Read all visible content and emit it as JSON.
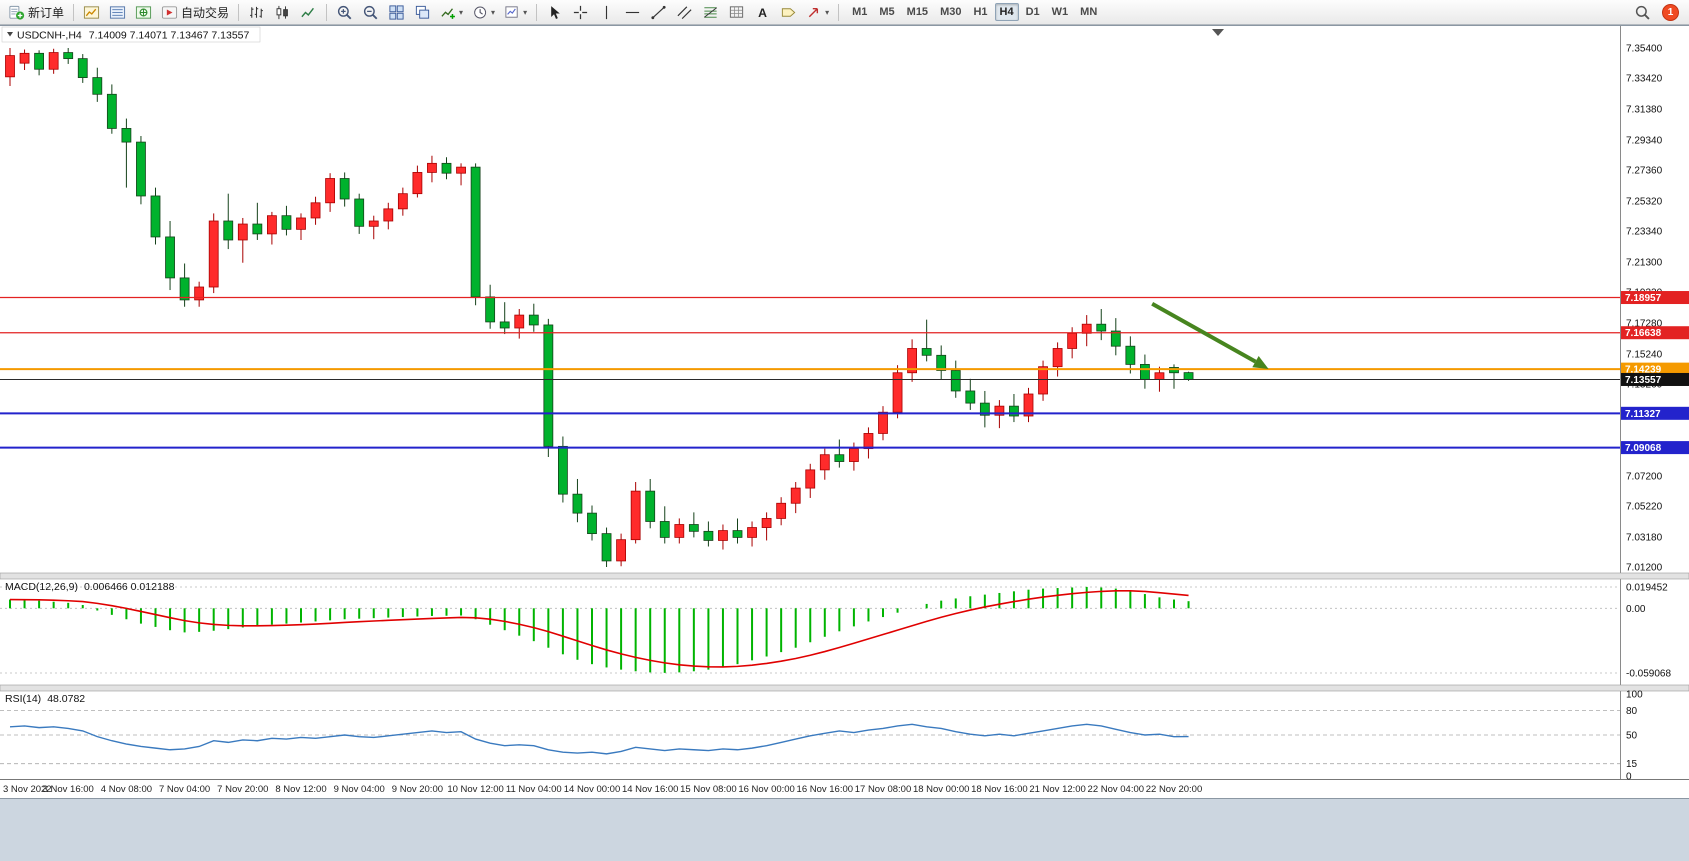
{
  "window": {
    "badge_count": "1"
  },
  "toolbar": {
    "items": [
      {
        "type": "labeled-button",
        "name": "new-order-button",
        "icon": "new-order-icon",
        "label": "新订单"
      },
      {
        "type": "sep"
      },
      {
        "type": "icon-button",
        "name": "market-watch-button",
        "icon": "market-watch-icon"
      },
      {
        "type": "icon-button",
        "name": "data-window-button",
        "icon": "data-window-icon"
      },
      {
        "type": "icon-button",
        "name": "navigator-button",
        "icon": "navigator-icon"
      },
      {
        "type": "labeled-button",
        "name": "auto-trading-button",
        "icon": "auto-trading-icon",
        "label": "自动交易"
      },
      {
        "type": "sep"
      },
      {
        "type": "icon-button",
        "name": "bar-chart-button",
        "icon": "bar-chart-icon"
      },
      {
        "type": "icon-button",
        "name": "candlestick-chart-button",
        "icon": "candlestick-icon"
      },
      {
        "type": "icon-button",
        "name": "line-chart-button",
        "icon": "line-chart-icon"
      },
      {
        "type": "sep"
      },
      {
        "type": "icon-button",
        "name": "zoom-in-button",
        "icon": "zoom-in-icon"
      },
      {
        "type": "icon-button",
        "name": "zoom-out-button",
        "icon": "zoom-out-icon"
      },
      {
        "type": "icon-button",
        "name": "tile-windows-button",
        "icon": "tile-windows-icon"
      },
      {
        "type": "icon-button",
        "name": "cascade-windows-button",
        "icon": "cascade-windows-icon"
      },
      {
        "type": "icon-dropdown",
        "name": "indicators-button",
        "icon": "indicators-icon"
      },
      {
        "type": "icon-dropdown",
        "name": "periods-button",
        "icon": "periods-icon"
      },
      {
        "type": "icon-dropdown",
        "name": "templates-button",
        "icon": "templates-icon"
      },
      {
        "type": "sep"
      },
      {
        "type": "icon-button",
        "name": "cursor-button",
        "icon": "cursor-icon"
      },
      {
        "type": "icon-button",
        "name": "crosshair-button",
        "icon": "crosshair-icon"
      },
      {
        "type": "icon-button",
        "name": "vertical-line-button",
        "icon": "vline-icon"
      },
      {
        "type": "icon-button",
        "name": "horizontal-line-button",
        "icon": "hline-icon"
      },
      {
        "type": "icon-button",
        "name": "trendline-button",
        "icon": "trendline-icon"
      },
      {
        "type": "icon-button",
        "name": "channel-button",
        "icon": "channel-icon"
      },
      {
        "type": "icon-button",
        "name": "fibonacci-button",
        "icon": "fibonacci-icon"
      },
      {
        "type": "icon-button",
        "name": "shapes-button",
        "icon": "shapes-icon"
      },
      {
        "type": "icon-button",
        "name": "text-button",
        "icon": "text-icon"
      },
      {
        "type": "icon-button",
        "name": "text-label-button",
        "icon": "label-icon"
      },
      {
        "type": "icon-dropdown",
        "name": "arrows-button",
        "icon": "arrows-icon"
      },
      {
        "type": "sep"
      }
    ],
    "timeframes": [
      {
        "label": "M1",
        "active": false
      },
      {
        "label": "M5",
        "active": false
      },
      {
        "label": "M15",
        "active": false
      },
      {
        "label": "M30",
        "active": false
      },
      {
        "label": "H1",
        "active": false
      },
      {
        "label": "H4",
        "active": true
      },
      {
        "label": "D1",
        "active": false
      },
      {
        "label": "W1",
        "active": false
      },
      {
        "label": "MN",
        "active": false
      }
    ],
    "right_items": [
      {
        "type": "icon-button",
        "name": "search-button",
        "icon": "search-icon"
      },
      {
        "type": "badge",
        "name": "notification-badge"
      }
    ]
  },
  "chart": {
    "symbol_title": "USDCNH-,H4",
    "ohlc_text": "7.14009 7.14071 7.13467 7.13557",
    "colors": {
      "up_fill": "#ff2b2b",
      "up_stroke": "#a80000",
      "down_fill": "#00b22d",
      "down_stroke": "#15421a",
      "red_line": "#e32222",
      "orange_line": "#f59a00",
      "blue_line": "#2323cc",
      "current_line": "#2b2b2b",
      "macd_hist": "#00b400",
      "macd_signal": "#e00000",
      "rsi_line": "#3a7abf"
    },
    "price_axis_ticks": [
      "7.35400",
      "7.33420",
      "7.31380",
      "7.29340",
      "7.27360",
      "7.25320",
      "7.23340",
      "7.21300",
      "7.19320",
      "7.17280",
      "7.15240",
      "7.13260",
      "7.11220",
      "7.09180",
      "7.07200",
      "7.05220",
      "7.03180",
      "7.01200"
    ],
    "hlines": [
      {
        "price": 7.18957,
        "label": "7.18957",
        "kind": "resistance",
        "color_key": "red_line",
        "width": 1.2
      },
      {
        "price": 7.16638,
        "label": "7.16638",
        "kind": "resistance",
        "color_key": "red_line",
        "width": 1.2
      },
      {
        "price": 7.14239,
        "label": "7.14239",
        "kind": "pivot",
        "color_key": "orange_line",
        "width": 2
      },
      {
        "price": 7.11327,
        "label": "7.11327",
        "kind": "support",
        "color_key": "blue_line",
        "width": 2
      },
      {
        "price": 7.09068,
        "label": "7.09068",
        "kind": "support",
        "color_key": "blue_line",
        "width": 2
      }
    ],
    "current_price": {
      "value": 7.13557,
      "label": "7.13557"
    },
    "annotation": {
      "shape": "arrow",
      "direction": "down-right",
      "color": "#47851f",
      "from": {
        "bar": 78.5,
        "price": 7.1855
      },
      "to": {
        "bar": 86.5,
        "price": 7.1425
      }
    }
  },
  "chart_data": {
    "type": "candlestick",
    "title": "USDCNH- H4",
    "price_axis_range": [
      7.354,
      7.012
    ],
    "bars_per_label": 4,
    "x_axis_labels": [
      "3 Nov 2022",
      "3 Nov 16:00",
      "4 Nov 08:00",
      "7 Nov 04:00",
      "7 Nov 20:00",
      "8 Nov 12:00",
      "9 Nov 04:00",
      "9 Nov 20:00",
      "10 Nov 12:00",
      "11 Nov 04:00",
      "14 Nov 00:00",
      "14 Nov 16:00",
      "15 Nov 08:00",
      "16 Nov 00:00",
      "16 Nov 16:00",
      "17 Nov 08:00",
      "18 Nov 00:00",
      "18 Nov 16:00",
      "21 Nov 12:00",
      "22 Nov 04:00",
      "22 Nov 20:00"
    ],
    "candles": [
      [
        7.335,
        7.354,
        7.329,
        7.349
      ],
      [
        7.344,
        7.353,
        7.3395,
        7.3505
      ],
      [
        7.3505,
        7.3525,
        7.336,
        7.34
      ],
      [
        7.34,
        7.3535,
        7.337,
        7.351
      ],
      [
        7.351,
        7.354,
        7.3435,
        7.347
      ],
      [
        7.347,
        7.35,
        7.331,
        7.3345
      ],
      [
        7.3345,
        7.341,
        7.3185,
        7.3235
      ],
      [
        7.3235,
        7.33,
        7.2975,
        7.301
      ],
      [
        7.301,
        7.3075,
        7.262,
        7.292
      ],
      [
        7.292,
        7.296,
        7.251,
        7.2565
      ],
      [
        7.2565,
        7.262,
        7.2245,
        7.2295
      ],
      [
        7.2295,
        7.24,
        7.1945,
        7.2025
      ],
      [
        7.2025,
        7.212,
        7.1835,
        7.188
      ],
      [
        7.188,
        7.2,
        7.1835,
        7.1965
      ],
      [
        7.1965,
        7.245,
        7.1925,
        7.24
      ],
      [
        7.24,
        7.258,
        7.2215,
        7.2275
      ],
      [
        7.2275,
        7.242,
        7.2125,
        7.238
      ],
      [
        7.238,
        7.252,
        7.2275,
        7.2315
      ],
      [
        7.2315,
        7.246,
        7.2245,
        7.2435
      ],
      [
        7.2435,
        7.25,
        7.2305,
        7.2345
      ],
      [
        7.2345,
        7.245,
        7.2275,
        7.242
      ],
      [
        7.242,
        7.256,
        7.2375,
        7.252
      ],
      [
        7.252,
        7.2715,
        7.246,
        7.268
      ],
      [
        7.268,
        7.272,
        7.2495,
        7.2545
      ],
      [
        7.2545,
        7.258,
        7.2315,
        7.2365
      ],
      [
        7.2365,
        7.2435,
        7.228,
        7.24
      ],
      [
        7.24,
        7.252,
        7.2345,
        7.248
      ],
      [
        7.248,
        7.262,
        7.2435,
        7.258
      ],
      [
        7.258,
        7.2765,
        7.2555,
        7.272
      ],
      [
        7.272,
        7.283,
        7.2655,
        7.278
      ],
      [
        7.278,
        7.282,
        7.2675,
        7.2715
      ],
      [
        7.2715,
        7.278,
        7.2635,
        7.2755
      ],
      [
        7.2755,
        7.278,
        7.1845,
        7.19
      ],
      [
        7.19,
        7.198,
        7.169,
        7.1735
      ],
      [
        7.1735,
        7.1865,
        7.1655,
        7.1695
      ],
      [
        7.1695,
        7.182,
        7.1625,
        7.178
      ],
      [
        7.178,
        7.1855,
        7.167,
        7.1715
      ],
      [
        7.1715,
        7.1755,
        7.0845,
        7.0915
      ],
      [
        7.0915,
        7.098,
        7.0545,
        7.06
      ],
      [
        7.06,
        7.07,
        7.0415,
        7.0475
      ],
      [
        7.0475,
        7.0525,
        7.0295,
        7.034
      ],
      [
        7.034,
        7.038,
        7.012,
        7.016
      ],
      [
        7.016,
        7.034,
        7.0125,
        7.03
      ],
      [
        7.03,
        7.068,
        7.0275,
        7.062
      ],
      [
        7.062,
        7.07,
        7.0375,
        7.042
      ],
      [
        7.042,
        7.052,
        7.0275,
        7.0315
      ],
      [
        7.0315,
        7.044,
        7.0275,
        7.04
      ],
      [
        7.04,
        7.048,
        7.0315,
        7.0355
      ],
      [
        7.0355,
        7.042,
        7.0255,
        7.0295
      ],
      [
        7.0295,
        7.04,
        7.0235,
        7.036
      ],
      [
        7.036,
        7.044,
        7.0275,
        7.0315
      ],
      [
        7.0315,
        7.042,
        7.0255,
        7.038
      ],
      [
        7.038,
        7.048,
        7.0295,
        7.044
      ],
      [
        7.044,
        7.058,
        7.0395,
        7.054
      ],
      [
        7.054,
        7.068,
        7.0475,
        7.064
      ],
      [
        7.064,
        7.08,
        7.0575,
        7.076
      ],
      [
        7.076,
        7.09,
        7.0695,
        7.086
      ],
      [
        7.086,
        7.096,
        7.0775,
        7.0815
      ],
      [
        7.0815,
        7.094,
        7.0755,
        7.09
      ],
      [
        7.09,
        7.104,
        7.0835,
        7.1
      ],
      [
        7.1,
        7.118,
        7.0955,
        7.114
      ],
      [
        7.114,
        7.145,
        7.11,
        7.14
      ],
      [
        7.14,
        7.162,
        7.134,
        7.156
      ],
      [
        7.156,
        7.175,
        7.1475,
        7.1515
      ],
      [
        7.1515,
        7.158,
        7.1355,
        7.1415
      ],
      [
        7.1415,
        7.148,
        7.1235,
        7.128
      ],
      [
        7.128,
        7.136,
        7.1155,
        7.12
      ],
      [
        7.12,
        7.128,
        7.104,
        7.112
      ],
      [
        7.112,
        7.122,
        7.1035,
        7.118
      ],
      [
        7.118,
        7.126,
        7.1075,
        7.1115
      ],
      [
        7.1115,
        7.13,
        7.1075,
        7.126
      ],
      [
        7.126,
        7.148,
        7.1215,
        7.144
      ],
      [
        7.144,
        7.16,
        7.1375,
        7.156
      ],
      [
        7.156,
        7.17,
        7.1495,
        7.166
      ],
      [
        7.166,
        7.178,
        7.1575,
        7.172
      ],
      [
        7.172,
        7.182,
        7.1615,
        7.1675
      ],
      [
        7.1675,
        7.176,
        7.1515,
        7.1575
      ],
      [
        7.1575,
        7.164,
        7.1395,
        7.1455
      ],
      [
        7.1455,
        7.152,
        7.1295,
        7.1355
      ],
      [
        7.1355,
        7.144,
        7.1275,
        7.14
      ],
      [
        7.1435,
        7.1455,
        7.1295,
        7.14
      ],
      [
        7.14009,
        7.14071,
        7.13467,
        7.13557
      ]
    ],
    "indicators": [
      {
        "type": "macd",
        "label": "MACD(12,26,9)",
        "values_text": "0.006466 0.012188",
        "macd_current": 0.006466,
        "signal_current": 0.012188,
        "axis_ticks": [
          {
            "value": 0.019452,
            "label": "0.019452"
          },
          {
            "value": 0,
            "label": "0.00"
          },
          {
            "value": -0.059068,
            "label": "-0.059068"
          }
        ],
        "histogram": [
          0.008,
          0.0075,
          0.007,
          0.006,
          0.005,
          0.003,
          -0.002,
          -0.006,
          -0.01,
          -0.014,
          -0.017,
          -0.02,
          -0.022,
          -0.0215,
          -0.0205,
          -0.019,
          -0.0175,
          -0.016,
          -0.015,
          -0.014,
          -0.013,
          -0.012,
          -0.011,
          -0.01,
          -0.0095,
          -0.009,
          -0.0085,
          -0.008,
          -0.0075,
          -0.007,
          -0.0068,
          -0.0066,
          -0.01,
          -0.015,
          -0.02,
          -0.025,
          -0.03,
          -0.036,
          -0.042,
          -0.047,
          -0.051,
          -0.054,
          -0.056,
          -0.0575,
          -0.0585,
          -0.059,
          -0.0585,
          -0.0575,
          -0.056,
          -0.054,
          -0.051,
          -0.0475,
          -0.044,
          -0.04,
          -0.036,
          -0.031,
          -0.026,
          -0.021,
          -0.0165,
          -0.012,
          -0.008,
          -0.004,
          0.0,
          0.004,
          0.007,
          0.009,
          0.011,
          0.0125,
          0.014,
          0.0155,
          0.017,
          0.018,
          0.0185,
          0.019,
          0.0195,
          0.019,
          0.018,
          0.016,
          0.013,
          0.01,
          0.008,
          0.0065
        ]
      },
      {
        "type": "rsi",
        "label": "RSI(14)",
        "values_text": "48.0782",
        "current": 48.0782,
        "axis_ticks": [
          {
            "value": 100,
            "label": "100"
          },
          {
            "value": 80,
            "label": "80"
          },
          {
            "value": 50,
            "label": "50"
          },
          {
            "value": 15,
            "label": "15"
          },
          {
            "value": 0,
            "label": "0"
          }
        ],
        "levels": [
          80,
          50,
          15
        ],
        "values": [
          60,
          61,
          59,
          60,
          58,
          55,
          48,
          43,
          39,
          36,
          34,
          32,
          33,
          36,
          43,
          41,
          44,
          43,
          46,
          45,
          47,
          46,
          48,
          50,
          48,
          47,
          49,
          51,
          53,
          55,
          53,
          54,
          45,
          40,
          37,
          38,
          37,
          32,
          29,
          28,
          29,
          27,
          30,
          35,
          33,
          31,
          33,
          32,
          31,
          33,
          32,
          34,
          37,
          41,
          45,
          49,
          52,
          55,
          53,
          56,
          58,
          61,
          63,
          60,
          58,
          54,
          51,
          49,
          51,
          49,
          52,
          55,
          58,
          61,
          63,
          61,
          57,
          53,
          50,
          51,
          48,
          48.08
        ]
      }
    ]
  }
}
